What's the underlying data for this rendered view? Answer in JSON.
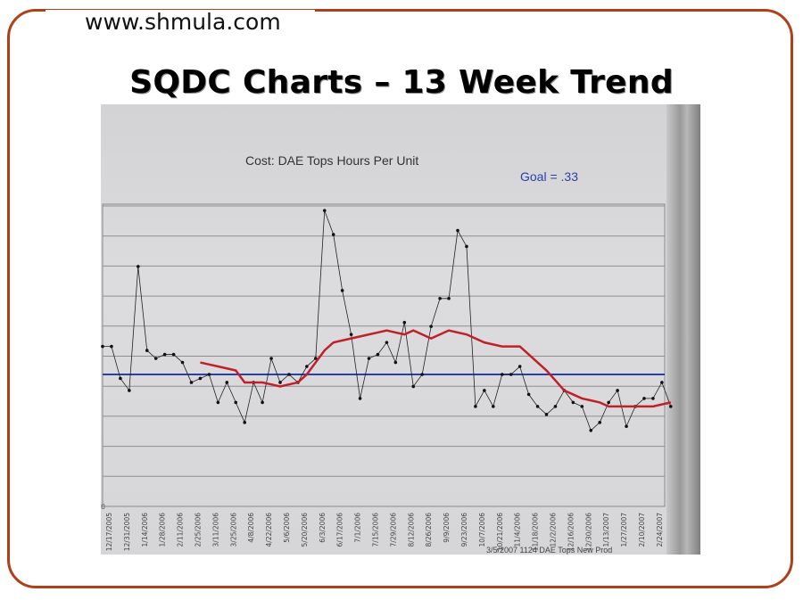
{
  "slide": {
    "website": "www.shmula.com",
    "title": "SQDC Charts – 13 Week Trend"
  },
  "colors": {
    "frame": "#b0401a",
    "goal_line": "#2a3fa8",
    "moving_average": "#c0202a",
    "data_line": "#222222"
  },
  "chart_data": {
    "type": "line",
    "title": "Cost: DAE Tops Hours Per Unit",
    "annotation": "Goal = .33",
    "footer": "3/5/2007  1124 DAE Tops New Prod",
    "y_zero_label": "0",
    "goal": 0.33,
    "x_tick_labels": [
      "12/17/2005",
      "12/31/2005",
      "1/14/2006",
      "1/28/2006",
      "2/11/2006",
      "2/25/2006",
      "3/11/2006",
      "3/25/2006",
      "4/8/2006",
      "4/22/2006",
      "5/6/2006",
      "5/20/2006",
      "6/3/2006",
      "6/17/2006",
      "7/1/2006",
      "7/15/2006",
      "7/29/2006",
      "8/12/2006",
      "8/26/2006",
      "9/9/2006",
      "9/23/2006",
      "10/7/2006",
      "10/21/2006",
      "11/4/2006",
      "11/18/2006",
      "12/2/2006",
      "12/16/2006",
      "12/30/2006",
      "1/13/2007",
      "1/27/2007",
      "2/10/2007",
      "2/24/2007"
    ],
    "grid": true,
    "series": [
      {
        "values": [
          0.4,
          0.4,
          0.32,
          0.29,
          0.6,
          0.39,
          0.37,
          0.38,
          0.38,
          0.36,
          0.31,
          0.32,
          0.33,
          0.26,
          0.31,
          0.26,
          0.21,
          0.31,
          0.26,
          0.37,
          0.31,
          0.33,
          0.31,
          0.35,
          0.37,
          0.74,
          0.68,
          0.54,
          0.43,
          0.27,
          0.37,
          0.38,
          0.41,
          0.36,
          0.46,
          0.3,
          0.33,
          0.45,
          0.52,
          0.52,
          0.69,
          0.65,
          0.25,
          0.29,
          0.25,
          0.33,
          0.33,
          0.35,
          0.28,
          0.25,
          0.23,
          0.25,
          0.29,
          0.26,
          0.25,
          0.19,
          0.21,
          0.26,
          0.29,
          0.2,
          0.25,
          0.27,
          0.27,
          0.31,
          0.25
        ]
      },
      {
        "values": [
          null,
          null,
          null,
          null,
          null,
          null,
          null,
          null,
          null,
          null,
          null,
          0.36,
          0.355,
          0.35,
          0.345,
          0.34,
          0.31,
          0.31,
          0.31,
          0.305,
          0.3,
          0.305,
          0.31,
          0.33,
          0.36,
          0.39,
          0.41,
          0.415,
          0.42,
          0.425,
          0.43,
          0.435,
          0.44,
          0.435,
          0.43,
          0.44,
          0.43,
          0.42,
          0.43,
          0.44,
          0.435,
          0.43,
          0.42,
          0.41,
          0.405,
          0.4,
          0.4,
          0.4,
          0.38,
          0.36,
          0.34,
          0.315,
          0.29,
          0.28,
          0.27,
          0.265,
          0.26,
          0.25,
          0.25,
          0.25,
          0.25,
          0.25,
          0.25,
          0.255,
          0.26
        ]
      }
    ]
  }
}
